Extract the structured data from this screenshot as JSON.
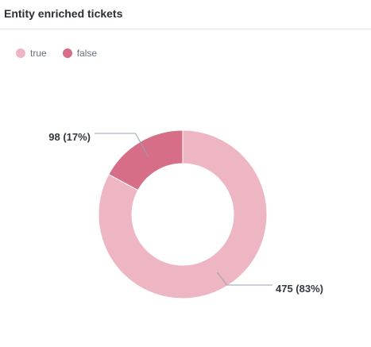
{
  "panel": {
    "title": "Entity enriched tickets"
  },
  "chart_data": {
    "type": "pie",
    "title": "Entity enriched tickets",
    "donut": true,
    "legend_position": "top-left",
    "slices": [
      {
        "name": "true",
        "value": 475,
        "percent": 83,
        "label": "475 (83%)",
        "color": "#eeb6c3"
      },
      {
        "name": "false",
        "value": 98,
        "percent": 17,
        "label": "98 (17%)",
        "color": "#d56e86"
      }
    ]
  }
}
